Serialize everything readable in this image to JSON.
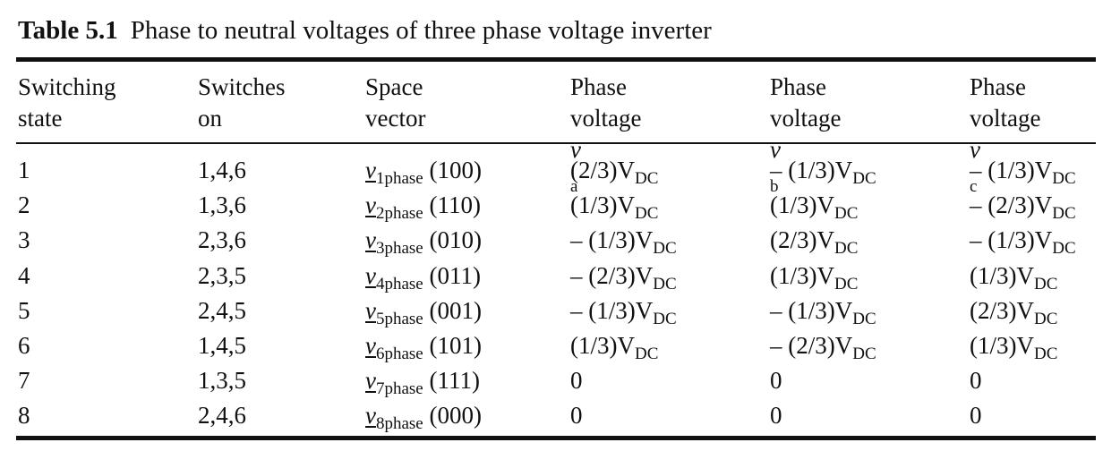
{
  "caption": {
    "label": "Table 5.1",
    "text": "Phase to neutral voltages of three phase voltage inverter"
  },
  "headers": {
    "col1": [
      "Switching",
      "state"
    ],
    "col2": [
      "Switches",
      "on"
    ],
    "col3": [
      "Space",
      "vector"
    ],
    "col4": [
      "Phase",
      "voltage "
    ],
    "col4_var": "v",
    "col4_sub": "a",
    "col5": [
      "Phase",
      "voltage "
    ],
    "col5_var": "v",
    "col5_sub": "b",
    "col6": [
      "Phase",
      "voltage "
    ],
    "col6_var": "v",
    "col6_sub": "c"
  },
  "rows": [
    {
      "state": "1",
      "switches": "1,4,6",
      "vec": "v",
      "vec_sub": "1phase",
      "code": "(100)",
      "va": "(2/3)V",
      "va_sub": "DC",
      "vb": "– (1/3)V",
      "vb_sub": "DC",
      "vc": "– (1/3)V",
      "vc_sub": "DC"
    },
    {
      "state": "2",
      "switches": "1,3,6",
      "vec": "v",
      "vec_sub": "2phase",
      "code": "(110)",
      "va": "(1/3)V",
      "va_sub": "DC",
      "vb": "(1/3)V",
      "vb_sub": "DC",
      "vc": "– (2/3)V",
      "vc_sub": "DC"
    },
    {
      "state": "3",
      "switches": "2,3,6",
      "vec": "v",
      "vec_sub": "3phase",
      "code": "(010)",
      "va": "– (1/3)V",
      "va_sub": "DC",
      "vb": "(2/3)V",
      "vb_sub": "DC",
      "vc": "– (1/3)V",
      "vc_sub": "DC"
    },
    {
      "state": "4",
      "switches": "2,3,5",
      "vec": "v",
      "vec_sub": "4phase",
      "code": "(011)",
      "va": "– (2/3)V",
      "va_sub": "DC",
      "vb": "(1/3)V",
      "vb_sub": "DC",
      "vc": "(1/3)V",
      "vc_sub": "DC"
    },
    {
      "state": "5",
      "switches": "2,4,5",
      "vec": "v",
      "vec_sub": "5phase",
      "code": "(001)",
      "va": "– (1/3)V",
      "va_sub": "DC",
      "vb": "– (1/3)V",
      "vb_sub": "DC",
      "vc": "(2/3)V",
      "vc_sub": "DC"
    },
    {
      "state": "6",
      "switches": "1,4,5",
      "vec": "v",
      "vec_sub": "6phase",
      "code": "(101)",
      "va": "(1/3)V",
      "va_sub": "DC",
      "vb": "– (2/3)V",
      "vb_sub": "DC",
      "vc": "(1/3)V",
      "vc_sub": "DC"
    },
    {
      "state": "7",
      "switches": "1,3,5",
      "vec": "v",
      "vec_sub": "7phase",
      "code": "(111)",
      "va": "0",
      "va_sub": "",
      "vb": "0",
      "vb_sub": "",
      "vc": "0",
      "vc_sub": ""
    },
    {
      "state": "8",
      "switches": "2,4,6",
      "vec": "v",
      "vec_sub": "8phase",
      "code": "(000)",
      "va": "0",
      "va_sub": "",
      "vb": "0",
      "vb_sub": "",
      "vc": "0",
      "vc_sub": ""
    }
  ]
}
